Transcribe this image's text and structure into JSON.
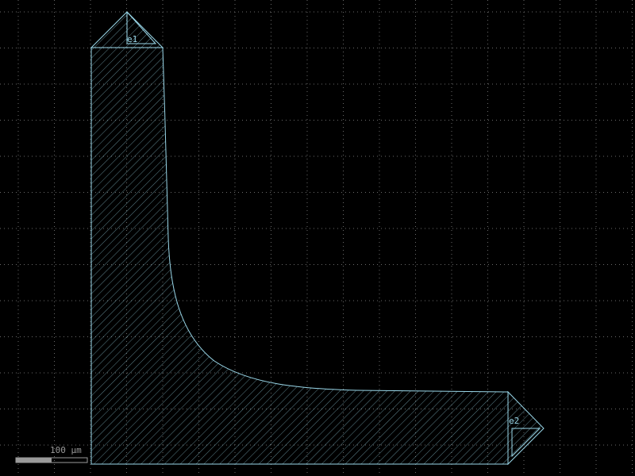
{
  "viewer": {
    "background_color": "#000000",
    "grid_color": "#6a6a6a",
    "shape_color": "#9ad8ea"
  },
  "ports": [
    {
      "label": "e1",
      "icon": "triangle-port-marker-icon"
    },
    {
      "label": "e2",
      "icon": "triangle-port-marker-icon"
    }
  ],
  "scale_bar": {
    "label": "100 µm",
    "color": "#9a9a9a"
  }
}
